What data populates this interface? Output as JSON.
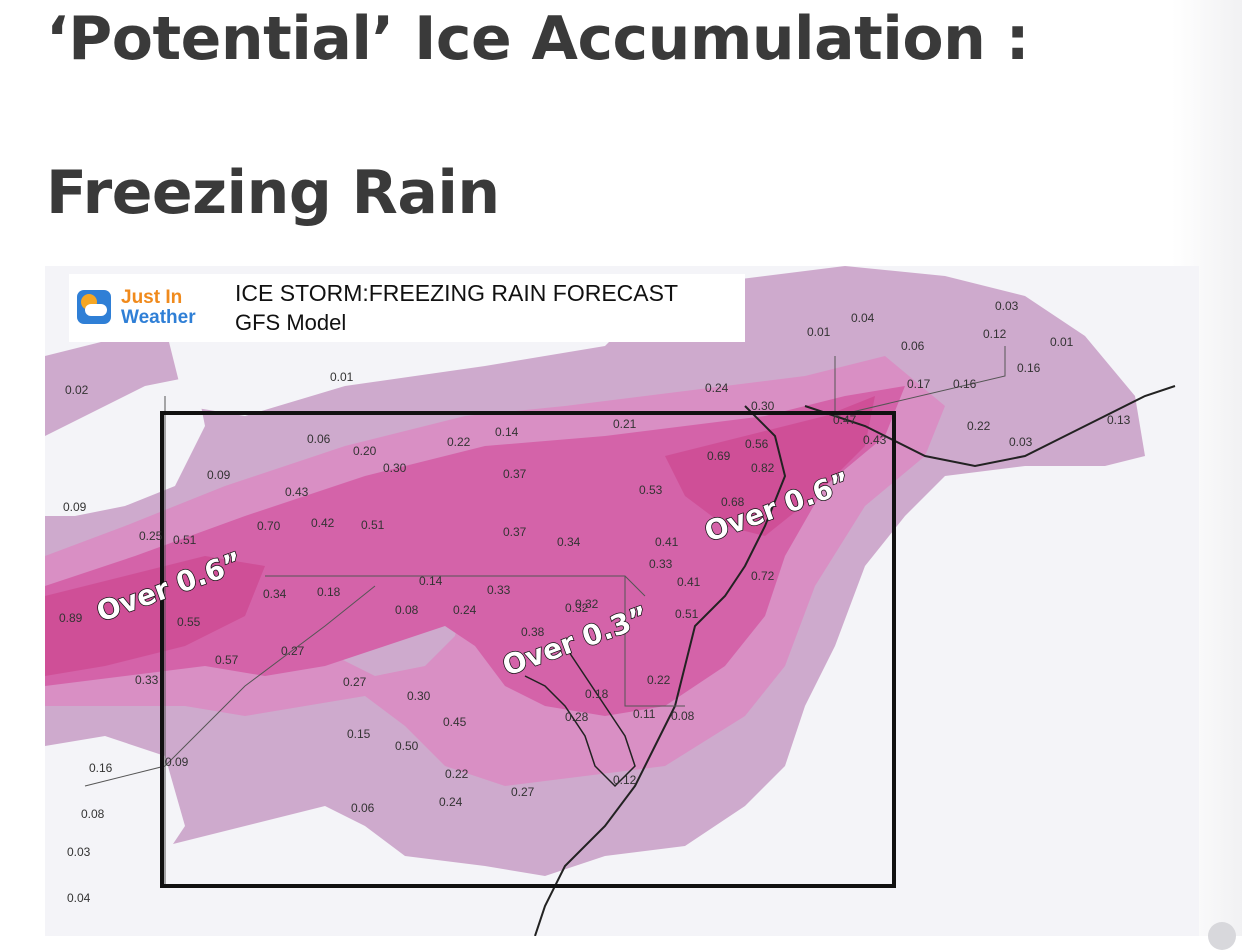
{
  "heading": {
    "line1": "‘Potential’ Ice Accumulation :",
    "line2": "Freezing Rain"
  },
  "map": {
    "logo_line1": "Just In",
    "logo_line2": "Weather",
    "title": "ICE STORM:FREEZING RAIN FORECAST",
    "subtitle": "GFS Model",
    "callouts": [
      {
        "text": "Over 0.6”"
      },
      {
        "text": "Over 0.3”"
      },
      {
        "text": "Over 0.6”"
      }
    ],
    "values": [
      "0.02",
      "0.09",
      "0.09",
      "0.01",
      "0.06",
      "0.20",
      "0.22",
      "0.14",
      "0.21",
      "0.24",
      "0.30",
      "0.01",
      "0.04",
      "0.03",
      "0.12",
      "0.06",
      "0.01",
      "0.17",
      "0.16",
      "0.16",
      "0.47",
      "0.43",
      "0.22",
      "0.03",
      "0.69",
      "0.82",
      "0.30",
      "0.37",
      "0.43",
      "0.70",
      "0.42",
      "0.51",
      "0.51",
      "0.53",
      "0.68",
      "0.37",
      "0.34",
      "0.41",
      "0.33",
      "0.72",
      "0.14",
      "0.33",
      "0.34",
      "0.18",
      "0.08",
      "0.24",
      "0.41",
      "0.51",
      "0.89",
      "0.55",
      "0.38",
      "0.32",
      "0.57",
      "0.27",
      "0.33",
      "0.27",
      "0.30",
      "0.22",
      "0.45",
      "0.11",
      "0.08",
      "0.15",
      "0.50",
      "0.16",
      "0.09",
      "0.22",
      "0.27",
      "0.12",
      "0.08",
      "0.06",
      "0.24",
      "0.03",
      "0.04",
      "0.28",
      "0.32",
      "0.18",
      "0.25",
      "0.13",
      "0.56"
    ],
    "colors": {
      "light": "#ceaacd",
      "medium": "#d98fc4",
      "strong": "#d463a9",
      "heavy": "#cf4f97",
      "background": "#f4f4f8"
    }
  }
}
